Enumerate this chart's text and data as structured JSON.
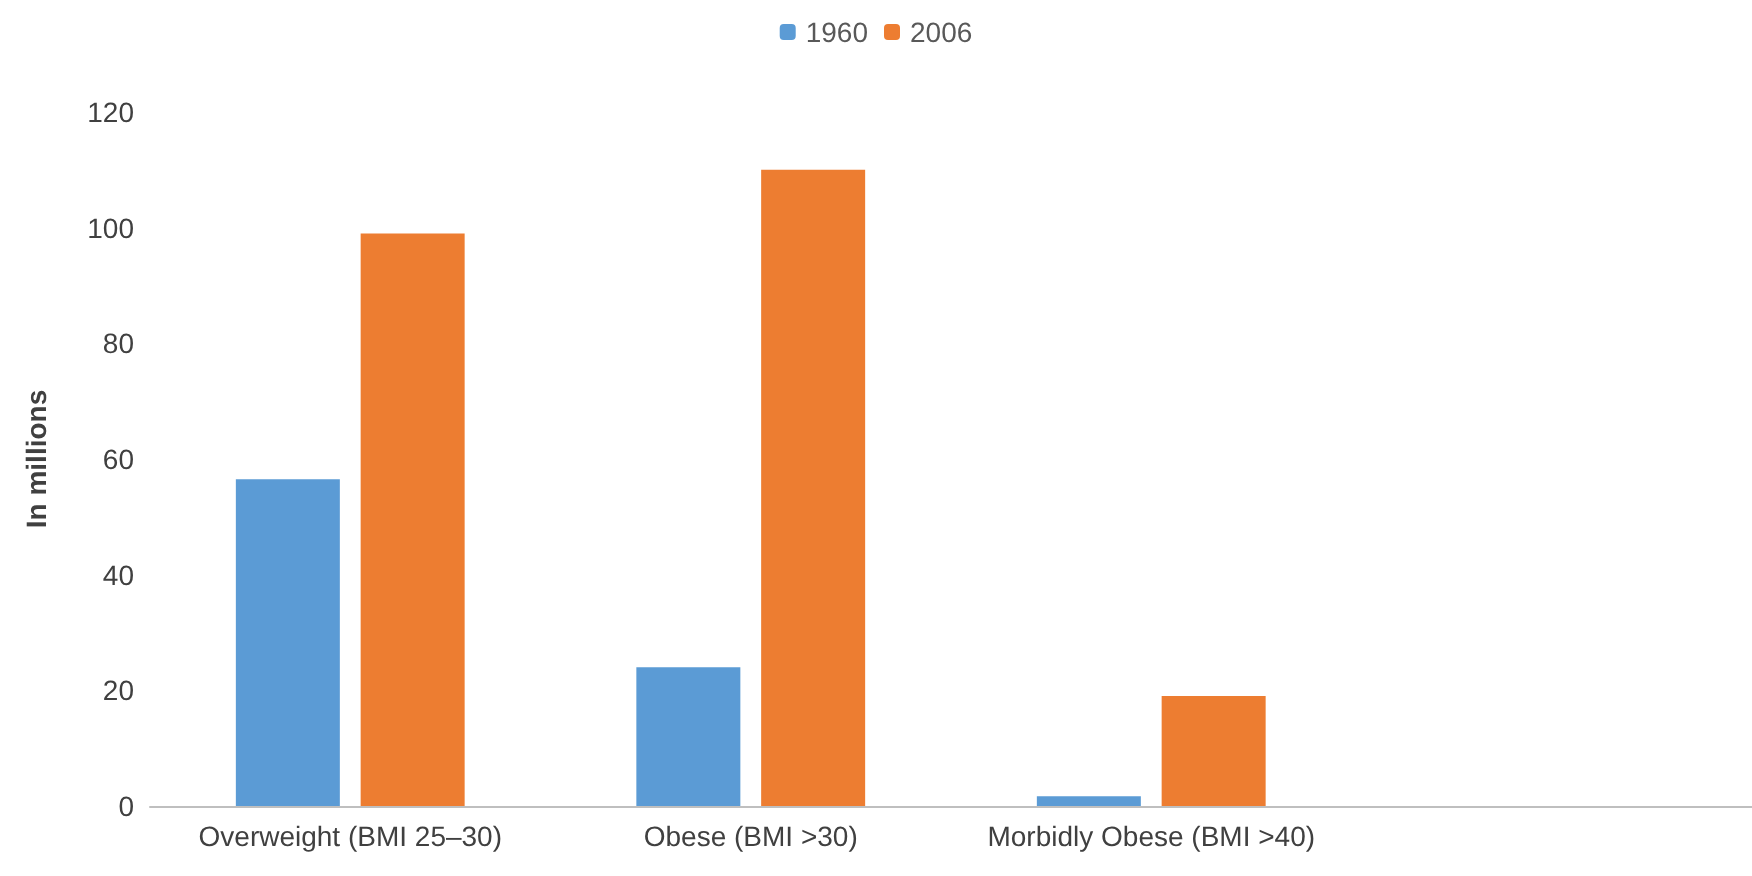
{
  "chart_data": {
    "type": "bar",
    "ylabel": "In millions",
    "categories": [
      "Overweight (BMI 25–30)",
      "Obese (BMI >30)",
      "Morbidly Obese (BMI >40)",
      null
    ],
    "series": [
      {
        "name": "1960",
        "color": "#5b9bd5",
        "values": [
          56.5,
          24,
          1.7,
          null
        ]
      },
      {
        "name": "2006",
        "color": "#ed7d31",
        "values": [
          99,
          110,
          19,
          null
        ]
      }
    ],
    "ylim": [
      0,
      120
    ],
    "yticks": [
      0,
      20,
      40,
      60,
      80,
      100,
      120
    ],
    "grid": false,
    "legend": "top"
  }
}
